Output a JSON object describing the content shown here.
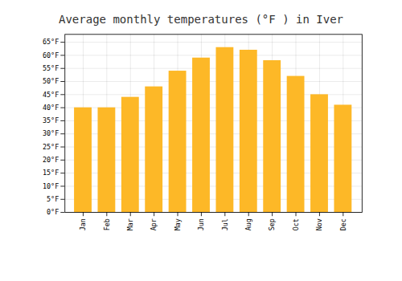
{
  "chart_data": {
    "type": "bar",
    "title": "Average monthly temperatures (°F ) in Iver",
    "categories": [
      "Jan",
      "Feb",
      "Mar",
      "Apr",
      "May",
      "Jun",
      "Jul",
      "Aug",
      "Sep",
      "Oct",
      "Nov",
      "Dec"
    ],
    "values": [
      40,
      40,
      44,
      48,
      54,
      59,
      63,
      62,
      58,
      52,
      45,
      41
    ],
    "color": "#FDB827",
    "ylim": [
      0,
      68
    ],
    "yticks": [
      {
        "value": 0,
        "label": "0°F"
      },
      {
        "value": 5,
        "label": "5°F"
      },
      {
        "value": 10,
        "label": "10°F"
      },
      {
        "value": 15,
        "label": "15°F"
      },
      {
        "value": 20,
        "label": "20°F"
      },
      {
        "value": 25,
        "label": "25°F"
      },
      {
        "value": 30,
        "label": "30°F"
      },
      {
        "value": 35,
        "label": "35°F"
      },
      {
        "value": 40,
        "label": "40°F"
      },
      {
        "value": 45,
        "label": "45°F"
      },
      {
        "value": 50,
        "label": "50°F"
      },
      {
        "value": 55,
        "label": "55°F"
      },
      {
        "value": 60,
        "label": "60°F"
      },
      {
        "value": 65,
        "label": "65°F"
      }
    ],
    "grid": true
  }
}
